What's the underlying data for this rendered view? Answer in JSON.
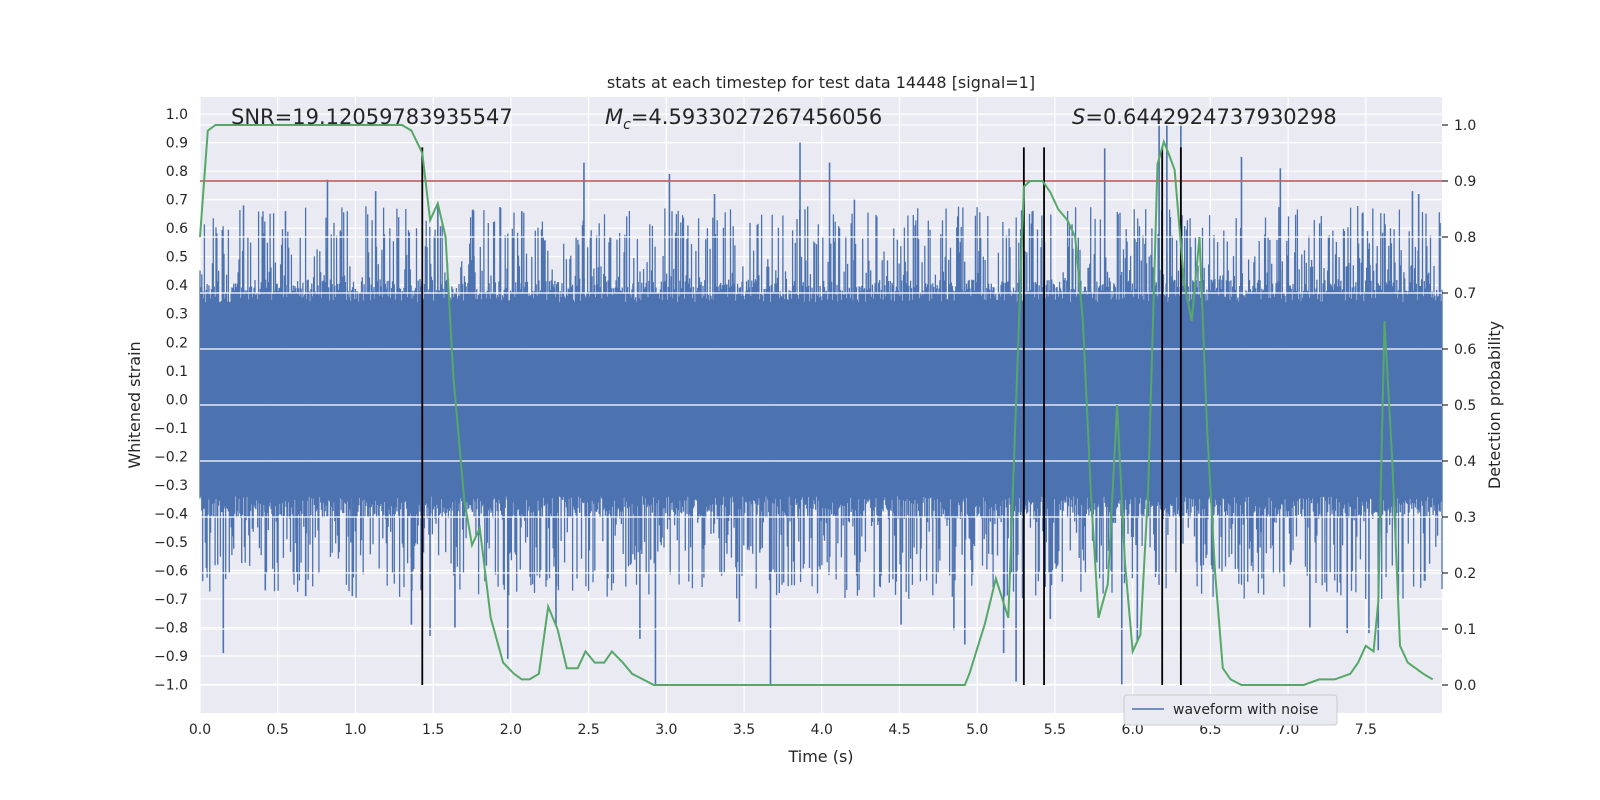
{
  "chart_data": {
    "type": "line",
    "title": "stats at each timestep for test data 14448 [signal=1]",
    "xlabel": "Time (s)",
    "ylabel": "Whitened strain",
    "y2label": "Detection probability",
    "xlim": [
      0.0,
      7.99
    ],
    "ylim": [
      -1.1,
      1.06
    ],
    "y2lim": [
      -0.05,
      1.05
    ],
    "xticks": [
      "0.0",
      "0.5",
      "1.0",
      "1.5",
      "2.0",
      "2.5",
      "3.0",
      "3.5",
      "4.0",
      "4.5",
      "5.0",
      "5.5",
      "6.0",
      "6.5",
      "7.0",
      "7.5"
    ],
    "xtick_values": [
      0,
      0.5,
      1,
      1.5,
      2,
      2.5,
      3,
      3.5,
      4,
      4.5,
      5,
      5.5,
      6,
      6.5,
      7,
      7.5
    ],
    "yticks": [
      "1.0",
      "0.9",
      "0.8",
      "0.7",
      "0.6",
      "0.5",
      "0.4",
      "0.3",
      "0.2",
      "0.1",
      "0.0",
      "−0.1",
      "−0.2",
      "−0.3",
      "−0.4",
      "−0.5",
      "−0.6",
      "−0.7",
      "−0.8",
      "−0.9",
      "−1.0"
    ],
    "ytick_values": [
      1.0,
      0.9,
      0.8,
      0.7,
      0.6,
      0.5,
      0.4,
      0.3,
      0.2,
      0.1,
      0.0,
      -0.1,
      -0.2,
      -0.3,
      -0.4,
      -0.5,
      -0.6,
      -0.7,
      -0.8,
      -0.9,
      -1.0
    ],
    "y2ticks": [
      "1.0",
      "0.9",
      "0.8",
      "0.7",
      "0.6",
      "0.5",
      "0.4",
      "0.3",
      "0.2",
      "0.1",
      "0.0"
    ],
    "y2tick_values": [
      1.0,
      0.9,
      0.8,
      0.7,
      0.6,
      0.5,
      0.4,
      0.3,
      0.2,
      0.1,
      0.0
    ],
    "annotations": {
      "snr": "SNR=19.12059783935547",
      "mc_symbol": "M",
      "mc_sub": "c",
      "mc_value": "=4.5933027267456056",
      "s_symbol": "S",
      "s_value": "=0.6442924737930298"
    },
    "threshold": {
      "value": 0.9,
      "color": "#c44e52"
    },
    "vertical_lines": [
      1.43,
      5.3,
      5.43,
      6.19,
      6.31
    ],
    "vertical_line_ymax": 0.96,
    "legend": {
      "label": "waveform with noise",
      "placement": "lower-right"
    },
    "series": [
      {
        "name": "waveform with noise",
        "axis": "left",
        "color": "#4c72b0",
        "style": "dense noise, amplitude envelope approx ±0.4 with spikes to ±1.0",
        "spikes": [
          [
            0.15,
            -0.89
          ],
          [
            0.28,
            0.68
          ],
          [
            0.42,
            -0.67
          ],
          [
            0.55,
            0.66
          ],
          [
            0.68,
            -0.69
          ],
          [
            0.82,
            0.77
          ],
          [
            0.98,
            -0.69
          ],
          [
            1.13,
            0.73
          ],
          [
            1.36,
            -0.79
          ],
          [
            1.48,
            -0.83
          ],
          [
            1.53,
            0.68
          ],
          [
            1.64,
            -0.8
          ],
          [
            1.76,
            0.66
          ],
          [
            1.98,
            -0.91
          ],
          [
            2.07,
            0.66
          ],
          [
            2.29,
            -0.79
          ],
          [
            2.47,
            0.83
          ],
          [
            2.83,
            -0.84
          ],
          [
            2.93,
            -1.0
          ],
          [
            3.02,
            0.79
          ],
          [
            3.31,
            0.72
          ],
          [
            3.47,
            -0.78
          ],
          [
            3.67,
            -1.0
          ],
          [
            3.86,
            0.9
          ],
          [
            4.05,
            0.83
          ],
          [
            4.21,
            0.7
          ],
          [
            4.51,
            -0.79
          ],
          [
            4.85,
            -0.81
          ],
          [
            4.92,
            -0.86
          ],
          [
            5.17,
            -0.89
          ],
          [
            5.25,
            -0.99
          ],
          [
            5.47,
            -0.77
          ],
          [
            5.82,
            0.88
          ],
          [
            5.93,
            -1.0
          ],
          [
            6.03,
            -0.85
          ],
          [
            6.17,
            0.96
          ],
          [
            6.22,
            0.96
          ],
          [
            6.31,
            0.96
          ],
          [
            6.7,
            0.85
          ],
          [
            6.95,
            0.81
          ],
          [
            7.14,
            -0.8
          ],
          [
            7.38,
            -0.82
          ],
          [
            7.52,
            -0.82
          ],
          [
            7.58,
            -0.88
          ],
          [
            7.8,
            0.73
          ],
          [
            7.84,
            0.72
          ]
        ]
      },
      {
        "name": "Detection probability",
        "axis": "right",
        "color": "#55a868",
        "x": [
          0.0,
          0.05,
          0.1,
          0.15,
          0.2,
          0.3,
          0.4,
          0.5,
          0.6,
          0.7,
          0.8,
          0.9,
          1.0,
          1.1,
          1.2,
          1.3,
          1.36,
          1.43,
          1.48,
          1.53,
          1.58,
          1.63,
          1.7,
          1.75,
          1.8,
          1.87,
          1.95,
          2.02,
          2.07,
          2.12,
          2.18,
          2.24,
          2.3,
          2.36,
          2.43,
          2.48,
          2.54,
          2.6,
          2.65,
          2.72,
          2.78,
          2.85,
          2.92,
          3.0,
          3.2,
          3.4,
          3.6,
          3.8,
          3.9,
          4.0,
          4.3,
          4.6,
          4.8,
          4.92,
          4.95,
          5.05,
          5.12,
          5.2,
          5.3,
          5.34,
          5.42,
          5.47,
          5.52,
          5.58,
          5.63,
          5.68,
          5.73,
          5.78,
          5.84,
          5.9,
          5.95,
          6.0,
          6.05,
          6.1,
          6.16,
          6.2,
          6.23,
          6.27,
          6.33,
          6.38,
          6.43,
          6.48,
          6.53,
          6.58,
          6.63,
          6.7,
          6.8,
          7.0,
          7.1,
          7.2,
          7.3,
          7.4,
          7.45,
          7.5,
          7.55,
          7.58,
          7.62,
          7.67,
          7.72,
          7.77,
          7.82,
          7.87,
          7.93
        ],
        "y": [
          0.8,
          0.99,
          1.0,
          1.0,
          1.0,
          1.0,
          1.0,
          1.0,
          1.0,
          1.0,
          1.0,
          1.0,
          1.0,
          1.0,
          1.0,
          1.0,
          0.99,
          0.95,
          0.83,
          0.86,
          0.8,
          0.55,
          0.33,
          0.25,
          0.28,
          0.12,
          0.04,
          0.02,
          0.01,
          0.01,
          0.02,
          0.14,
          0.1,
          0.03,
          0.03,
          0.06,
          0.04,
          0.04,
          0.06,
          0.04,
          0.02,
          0.01,
          0.0,
          0.0,
          0.0,
          0.0,
          0.0,
          0.0,
          0.0,
          0.0,
          0.0,
          0.0,
          0.0,
          0.0,
          0.02,
          0.11,
          0.19,
          0.12,
          0.89,
          0.9,
          0.9,
          0.88,
          0.85,
          0.83,
          0.8,
          0.65,
          0.35,
          0.12,
          0.18,
          0.5,
          0.22,
          0.06,
          0.09,
          0.35,
          0.93,
          0.97,
          0.95,
          0.92,
          0.72,
          0.65,
          0.8,
          0.45,
          0.2,
          0.03,
          0.01,
          0.0,
          0.0,
          0.0,
          0.0,
          0.01,
          0.01,
          0.02,
          0.04,
          0.07,
          0.06,
          0.15,
          0.65,
          0.4,
          0.07,
          0.04,
          0.03,
          0.02,
          0.01
        ]
      }
    ]
  }
}
